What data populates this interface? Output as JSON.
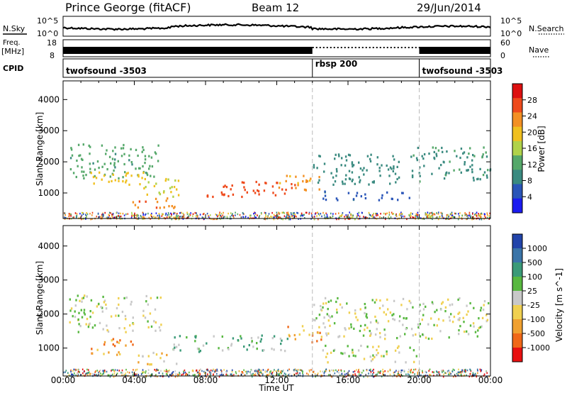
{
  "header": {
    "station": "Prince George (fitACF)",
    "beam": "Beam 12",
    "date": "29/Jun/2014"
  },
  "info_panels": {
    "nsky_label": "N.Sky",
    "nsearch_label": "N.Search",
    "noise_tick_top": "10^5",
    "noise_tick_bottom": "10^0",
    "freq_label": "Freq.",
    "freq_unit": "[MHz]",
    "freq_ticks": [
      "18",
      "8"
    ],
    "nave_label": "Nave",
    "nave_ticks": [
      "60",
      "0"
    ],
    "cpid_label": "CPID",
    "cpid_segments": [
      {
        "name": "twofsound -3503",
        "start_h": 0,
        "end_h": 14
      },
      {
        "name": "rbsp 200",
        "start_h": 14,
        "end_h": 20
      },
      {
        "name": "twofsound -3503",
        "start_h": 20,
        "end_h": 24
      }
    ]
  },
  "colors": {
    "power": [
      "#1b1bf0",
      "#2a55b8",
      "#3a8a80",
      "#55a86a",
      "#b0d24a",
      "#f0c020",
      "#f39024",
      "#ee4a1c",
      "#dd1010"
    ],
    "velocity": [
      "#2244aa",
      "#3a74a8",
      "#3a9a78",
      "#58b840",
      "#c8c8c8",
      "#f0d050",
      "#f0a030",
      "#f06818",
      "#e81010"
    ]
  },
  "chart_data": [
    {
      "type": "heatmap",
      "name": "power",
      "ylabel": "Slant Range [km]",
      "xlabel": "Time UT",
      "x_ticks": [
        "00:00",
        "04:00",
        "08:00",
        "12:00",
        "16:00",
        "20:00",
        "00:00"
      ],
      "x_range_h": [
        0,
        24
      ],
      "y_ticks": [
        1000,
        2000,
        3000,
        4000
      ],
      "y_range_km": [
        180,
        4600
      ],
      "colorbar_label": "Power [dB]",
      "colorbar_ticks": [
        "4",
        "8",
        "12",
        "16",
        "20",
        "24",
        "28"
      ],
      "colorbar_range_db": [
        0,
        32
      ],
      "echo_regions": [
        {
          "t0": 0.3,
          "t1": 5.5,
          "r0": 1500,
          "r1": 2600,
          "level": 12
        },
        {
          "t0": 1.5,
          "t1": 4.5,
          "r0": 1200,
          "r1": 1700,
          "level": 20
        },
        {
          "t0": 4.5,
          "t1": 6.8,
          "r0": 900,
          "r1": 1500,
          "level": 18
        },
        {
          "t0": 3.8,
          "t1": 6.5,
          "r0": 550,
          "r1": 900,
          "level": 24
        },
        {
          "t0": 8.0,
          "t1": 13.0,
          "r0": 900,
          "r1": 1400,
          "level": 27
        },
        {
          "t0": 12.0,
          "t1": 14.5,
          "r0": 1100,
          "r1": 1600,
          "level": 22
        },
        {
          "t0": 14.0,
          "t1": 19.0,
          "r0": 1300,
          "r1": 2300,
          "level": 9
        },
        {
          "t0": 14.5,
          "t1": 19.5,
          "r0": 800,
          "r1": 1100,
          "level": 6
        },
        {
          "t0": 19.5,
          "t1": 24.0,
          "r0": 1400,
          "r1": 2500,
          "level": 10
        }
      ]
    },
    {
      "type": "heatmap",
      "name": "velocity",
      "ylabel": "Slant Range [km]",
      "xlabel": "Time UT",
      "x_ticks": [
        "00:00",
        "04:00",
        "08:00",
        "12:00",
        "16:00",
        "20:00",
        "00:00"
      ],
      "x_range_h": [
        0,
        24
      ],
      "y_ticks": [
        1000,
        2000,
        3000,
        4000
      ],
      "y_range_km": [
        180,
        4600
      ],
      "colorbar_label": "Velocity [m s^-1]",
      "colorbar_ticks": [
        "1000",
        "500",
        "100",
        "25",
        "-25",
        "-100",
        "-500",
        "-1000"
      ],
      "echo_regions": [
        {
          "t0": 0.3,
          "t1": 5.5,
          "r0": 1500,
          "r1": 2600,
          "level": 4
        },
        {
          "t0": 1.5,
          "t1": 4.0,
          "r0": 800,
          "r1": 1300,
          "level": 6
        },
        {
          "t0": 4.0,
          "t1": 6.5,
          "r0": 550,
          "r1": 900,
          "level": 5
        },
        {
          "t0": 6.0,
          "t1": 13.0,
          "r0": 900,
          "r1": 1400,
          "level": 3
        },
        {
          "t0": 12.5,
          "t1": 14.5,
          "r0": 1200,
          "r1": 1700,
          "level": 6
        },
        {
          "t0": 14.0,
          "t1": 24.0,
          "r0": 1300,
          "r1": 2500,
          "level": 4
        },
        {
          "t0": 14.5,
          "t1": 20.0,
          "r0": 600,
          "r1": 1100,
          "level": 4
        }
      ]
    }
  ]
}
